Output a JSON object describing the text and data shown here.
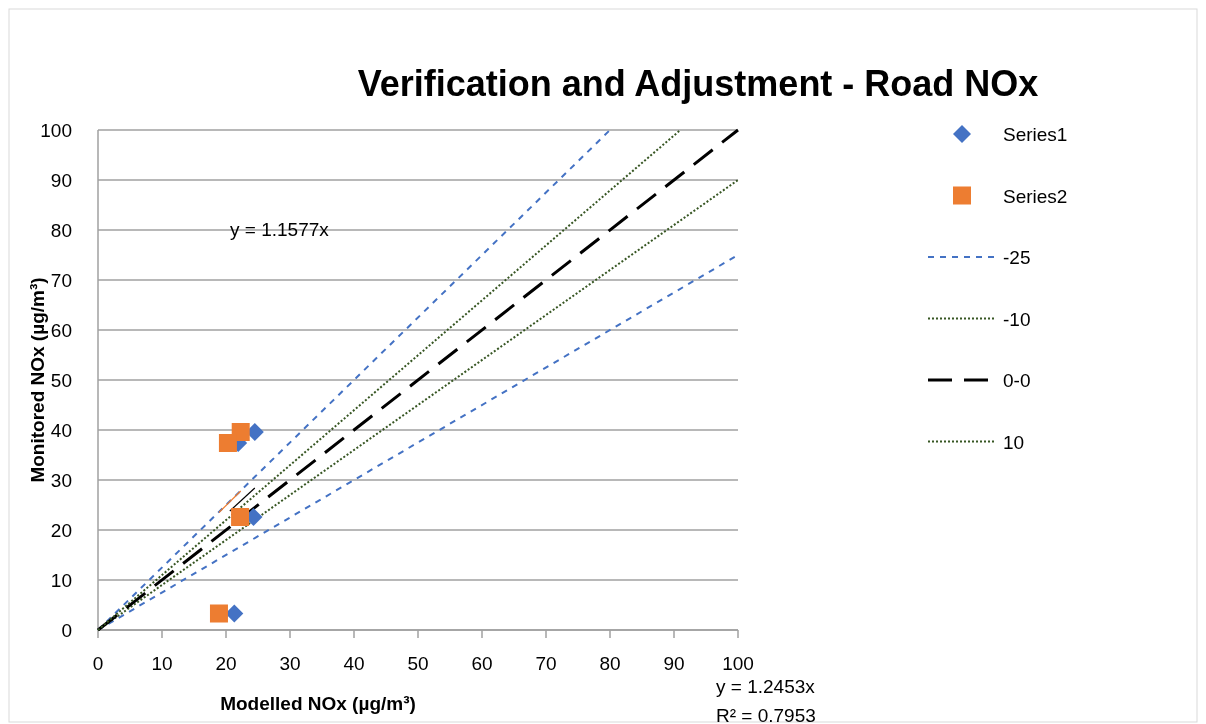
{
  "chart_data": {
    "type": "scatter",
    "title": "Verification and Adjustment - Road NOx",
    "xlabel": "Modelled NOx (µg/m³)",
    "ylabel": "Monitored NOx (µg/m³)",
    "xlim": [
      0,
      100
    ],
    "ylim": [
      0,
      100
    ],
    "xticks": [
      0,
      10,
      20,
      30,
      40,
      50,
      60,
      70,
      80,
      90,
      100
    ],
    "yticks": [
      0,
      10,
      20,
      30,
      40,
      50,
      60,
      70,
      80,
      90,
      100
    ],
    "grid": "y",
    "legend": "right",
    "annotations": [
      "y = 1.1577x",
      "y = 1.2453x",
      "R² = 0.7953"
    ],
    "series": [
      {
        "name": "Series1",
        "marker": "diamond",
        "color": "#4472c4",
        "x": [
          24.5,
          21.9,
          24.3,
          21.3
        ],
        "values": [
          39.6,
          37.4,
          22.6,
          3.3
        ]
      },
      {
        "name": "Series2",
        "marker": "square",
        "color": "#ed7d31",
        "x": [
          22.3,
          20.3,
          22.2,
          18.9
        ],
        "values": [
          39.6,
          37.4,
          22.6,
          3.3
        ]
      },
      {
        "name": "-25",
        "type": "line",
        "line_style": "dashed",
        "color": "#4472c4",
        "x": [
          0,
          100
        ],
        "values": [
          0,
          75
        ]
      },
      {
        "type": "line",
        "line_style": "dashed",
        "color": "#4472c4",
        "x": [
          0,
          80
        ],
        "values": [
          0,
          100
        ]
      },
      {
        "name": "-10",
        "type": "line",
        "line_style": "dotted",
        "color": "#375623",
        "x": [
          0,
          100
        ],
        "values": [
          0,
          90
        ]
      },
      {
        "name": "0-0",
        "type": "line",
        "line_style": "longdash",
        "color": "#000000",
        "x": [
          0,
          100
        ],
        "values": [
          0,
          100
        ]
      },
      {
        "name": "10",
        "type": "line",
        "line_style": "dotted",
        "color": "#375623",
        "x": [
          0,
          91
        ],
        "values": [
          0,
          100
        ]
      },
      {
        "type": "line",
        "line_style": "solid",
        "color": "#000000",
        "x": [
          20.6,
          24.5
        ],
        "values": [
          23.8,
          28.4
        ]
      },
      {
        "type": "line",
        "line_style": "solid",
        "color": "#ed7d31",
        "x": [
          18.9,
          22.3
        ],
        "values": [
          23.5,
          27.8
        ]
      }
    ]
  }
}
